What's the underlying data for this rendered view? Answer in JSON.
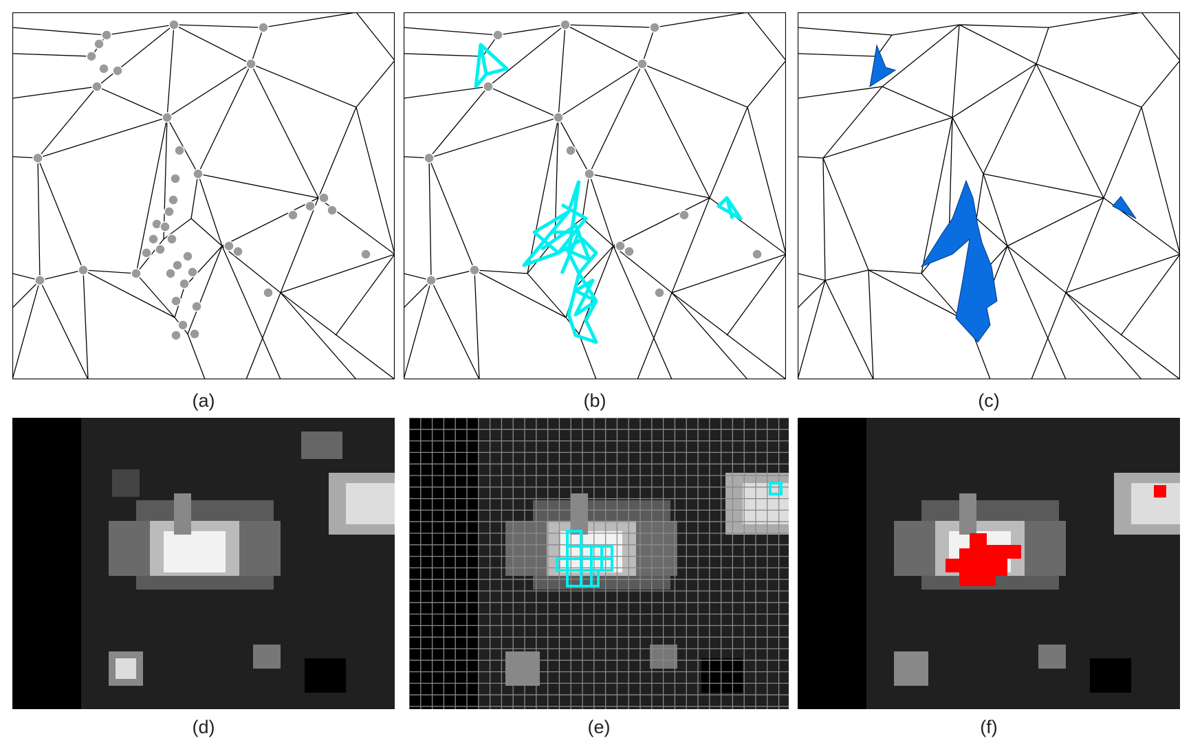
{
  "panels": [
    {
      "id": "a",
      "caption": "(a)",
      "content": "delaunay-triangulation-with-gray-vertices"
    },
    {
      "id": "b",
      "caption": "(b)",
      "content": "triangulation-with-cyan-highlighted-short-edges"
    },
    {
      "id": "c",
      "caption": "(c)",
      "content": "triangulation-with-blue-filled-regions"
    },
    {
      "id": "d",
      "caption": "(d)",
      "content": "grayscale-pixel-image"
    },
    {
      "id": "e",
      "caption": "(e)",
      "content": "grayscale-image-with-grid-and-cyan-cells"
    },
    {
      "id": "f",
      "caption": "(f)",
      "content": "grayscale-image-with-red-regions"
    }
  ],
  "colors": {
    "vertex": "#9a9a9a",
    "edge": "#000000",
    "highlight_edges": "#00f0f0",
    "filled_region": "#0a6ee0",
    "grid_line": "#8a8a8a",
    "red_region": "#ff0000",
    "frame": "#000000"
  }
}
